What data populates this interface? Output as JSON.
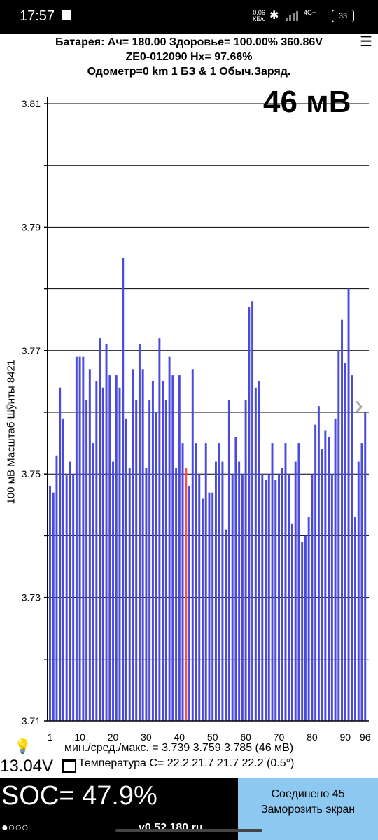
{
  "status_bar": {
    "time": "17:57",
    "net_speed_top": "0,06",
    "net_speed_bottom": "КБ/с",
    "network": "4G+",
    "battery": "33"
  },
  "header": {
    "line1": "Батарея:  Ач= 180.00  Здоровье= 100.00%   360.86V",
    "line2": "ZE0-012090   Нх= 97.66%",
    "line3": "Одометр=0 km 1 БЗ & 1 Обыч.Заряд."
  },
  "big_value": "46 мВ",
  "y_axis_label": "100 мВ Масштаб  Шунты 8421",
  "chart_data": {
    "type": "bar",
    "ylim": [
      3.71,
      3.81
    ],
    "y_ticks": [
      "3.81",
      "3.79",
      "3.77",
      "3.75",
      "3.73",
      "3.71"
    ],
    "x_ticks": [
      "1",
      "10",
      "20",
      "30",
      "40",
      "50",
      "60",
      "70",
      "80",
      "90",
      "96"
    ],
    "bar_color": "#4a4adc",
    "highlight_color": "#ff4a4a",
    "highlight_index": 41,
    "values": [
      3.748,
      3.747,
      3.753,
      3.764,
      3.759,
      3.75,
      3.752,
      3.75,
      3.769,
      3.769,
      3.769,
      3.762,
      3.767,
      3.755,
      3.765,
      3.772,
      3.764,
      3.771,
      3.766,
      3.752,
      3.766,
      3.764,
      3.785,
      3.759,
      3.751,
      3.767,
      3.762,
      3.771,
      3.767,
      3.751,
      3.762,
      3.765,
      3.76,
      3.772,
      3.765,
      3.762,
      3.769,
      3.766,
      3.751,
      3.766,
      3.755,
      3.751,
      3.748,
      3.767,
      3.755,
      3.75,
      3.746,
      3.755,
      3.747,
      3.747,
      3.752,
      3.755,
      3.752,
      3.741,
      3.762,
      3.75,
      3.756,
      3.752,
      3.75,
      3.762,
      3.777,
      3.778,
      3.764,
      3.765,
      3.75,
      3.749,
      3.75,
      3.755,
      3.749,
      3.75,
      3.751,
      3.755,
      3.75,
      3.742,
      3.752,
      3.755,
      3.739,
      3.74,
      3.743,
      3.75,
      3.758,
      3.761,
      3.754,
      3.757,
      3.756,
      3.75,
      3.759,
      3.77,
      3.775,
      3.768,
      3.78,
      3.766,
      3.743,
      3.752,
      3.755,
      3.76
    ]
  },
  "stats_line": "мин./сред./макс. = 3.739 3.759 3.785  (46 мВ)",
  "voltage": "13.04V",
  "temperature_line": "Температура С= 22.2  21.7  21.7  22.2  (0.5°)",
  "soc": "SOC= 47.9%",
  "dots": "●○○○",
  "version": "v0.52.180 ru",
  "connect_button": {
    "line1": "Соединено 45",
    "line2": "Заморозить экран"
  }
}
